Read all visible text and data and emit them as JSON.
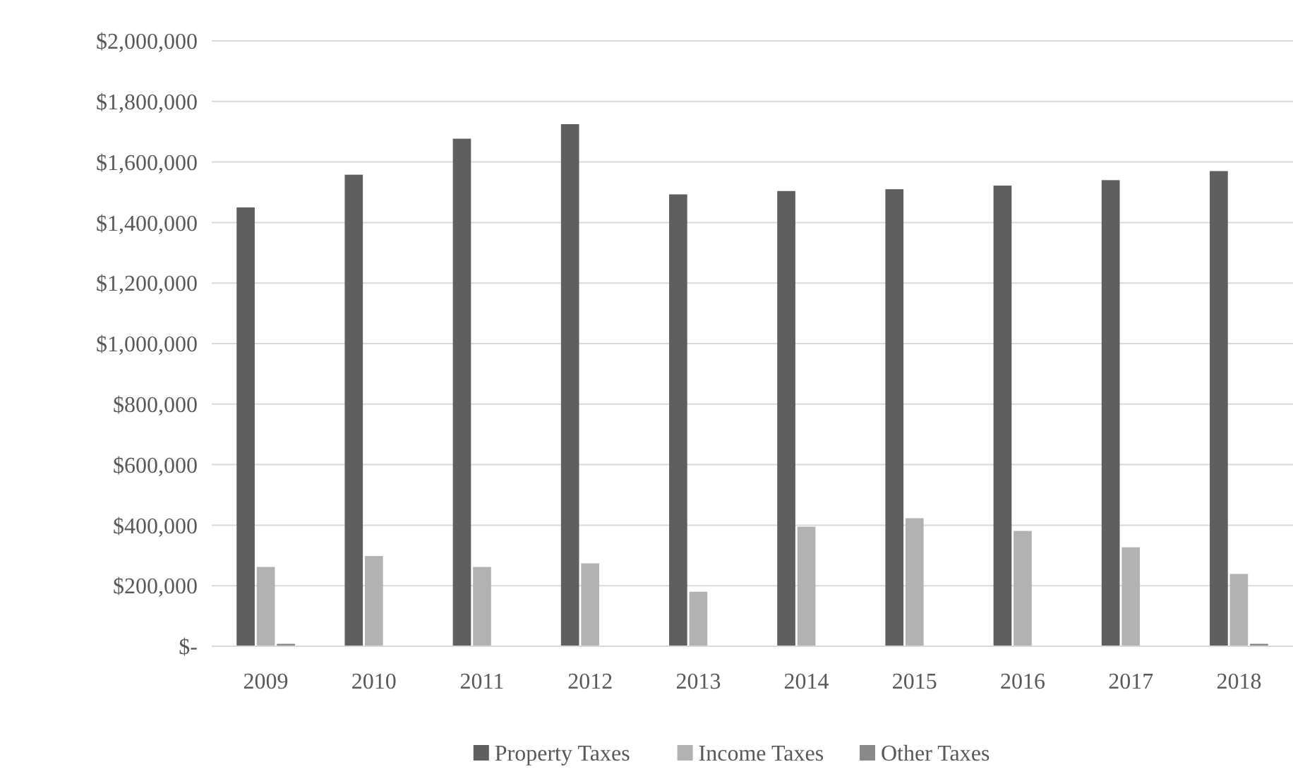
{
  "chart_data": {
    "type": "bar",
    "categories": [
      "2009",
      "2010",
      "2011",
      "2012",
      "2013",
      "2014",
      "2015",
      "2016",
      "2017",
      "2018"
    ],
    "series": [
      {
        "name": "Property Taxes",
        "color": "#5f5f5f",
        "values": [
          1450000,
          1558000,
          1677000,
          1725000,
          1493000,
          1504000,
          1510000,
          1522000,
          1540000,
          1570000
        ]
      },
      {
        "name": "Income Taxes",
        "color": "#b2b2b2",
        "values": [
          262000,
          298000,
          262000,
          274000,
          180000,
          395000,
          423000,
          381000,
          327000,
          239000
        ]
      },
      {
        "name": "Other Taxes",
        "color": "#898989",
        "values": [
          8000,
          0,
          0,
          0,
          0,
          0,
          0,
          0,
          0,
          8000
        ]
      }
    ],
    "ylim": [
      0,
      2000000
    ],
    "yticks": [
      {
        "value": 0,
        "label": "$-"
      },
      {
        "value": 200000,
        "label": "$200,000"
      },
      {
        "value": 400000,
        "label": "$400,000"
      },
      {
        "value": 600000,
        "label": "$600,000"
      },
      {
        "value": 800000,
        "label": "$800,000"
      },
      {
        "value": 1000000,
        "label": "$1,000,000"
      },
      {
        "value": 1200000,
        "label": "$1,200,000"
      },
      {
        "value": 1400000,
        "label": "$1,400,000"
      },
      {
        "value": 1600000,
        "label": "$1,600,000"
      },
      {
        "value": 1800000,
        "label": "$1,800,000"
      },
      {
        "value": 2000000,
        "label": "$2,000,000"
      }
    ],
    "grid": "y",
    "legend": "bottom"
  }
}
